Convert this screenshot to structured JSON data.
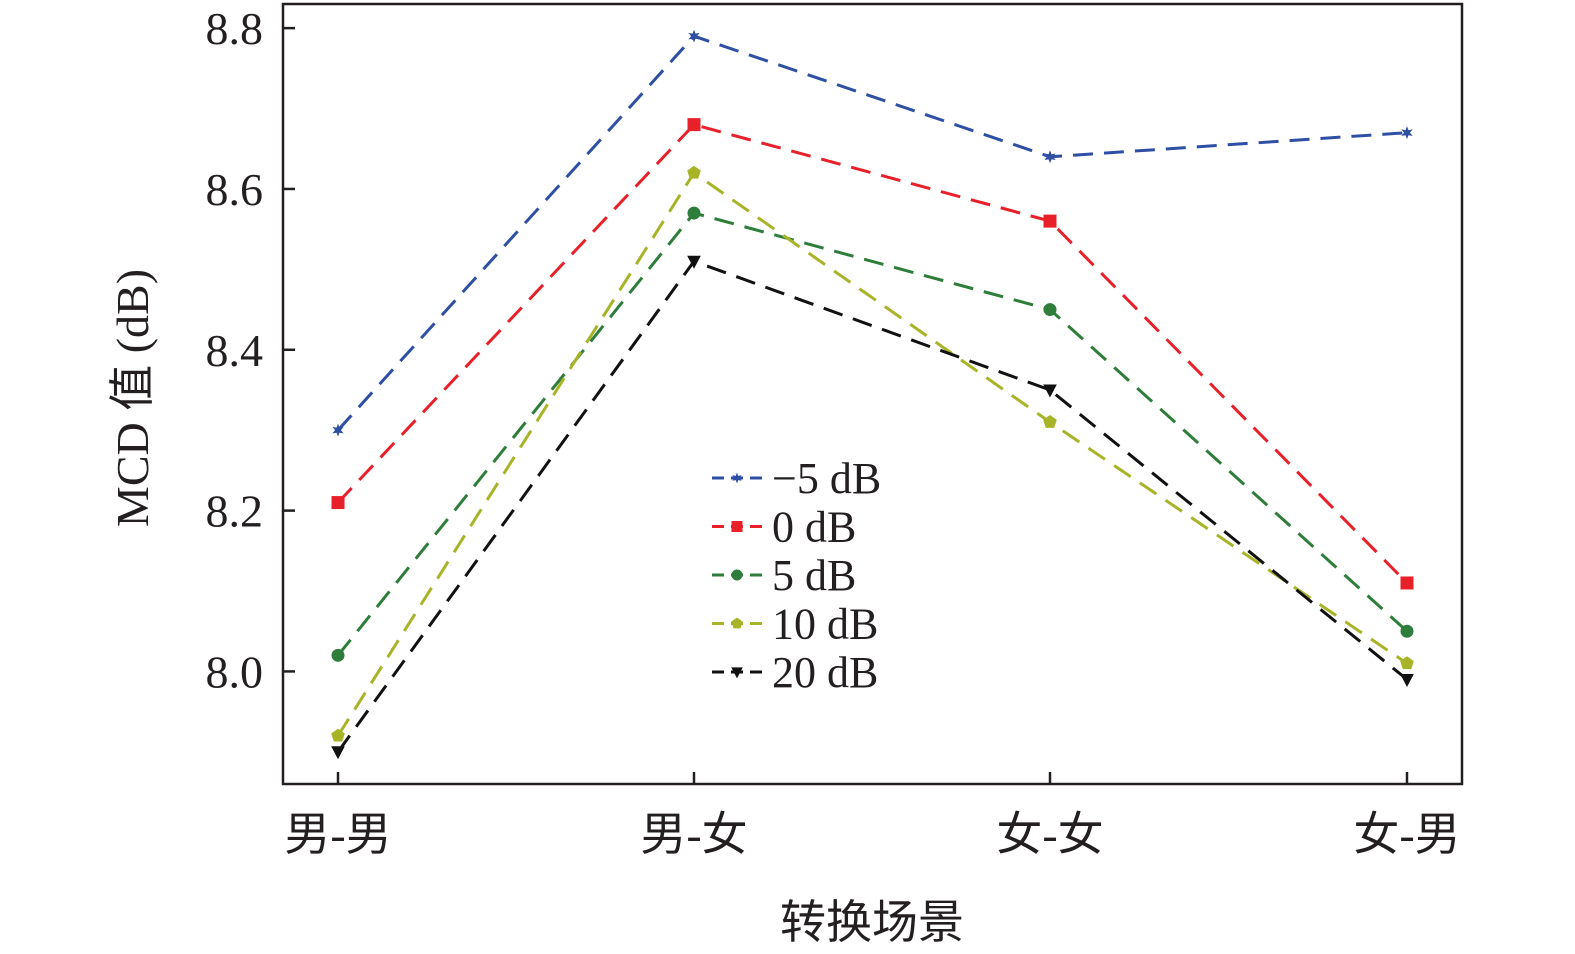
{
  "chart_data": {
    "type": "line",
    "title": "",
    "xlabel": "转换场景",
    "ylabel": "MCD 值 (dB)",
    "categories": [
      "男-男",
      "男-女",
      "女-女",
      "女-男"
    ],
    "ylim": [
      7.86,
      8.83
    ],
    "yticks": [
      8.0,
      8.2,
      8.4,
      8.6,
      8.8
    ],
    "ytick_labels": [
      "8.0",
      "8.2",
      "8.4",
      "8.6",
      "8.8"
    ],
    "grid": false,
    "legend_position": "center",
    "line_style": "dashed",
    "series": [
      {
        "name": "−5 dB",
        "marker": "star",
        "color": "#2e4fa3",
        "values": [
          8.3,
          8.79,
          8.64,
          8.67
        ]
      },
      {
        "name": "0 dB",
        "marker": "square",
        "color": "#e8202a",
        "values": [
          8.21,
          8.68,
          8.56,
          8.11
        ]
      },
      {
        "name": "5 dB",
        "marker": "circle",
        "color": "#2e7d3a",
        "values": [
          8.02,
          8.57,
          8.45,
          8.05
        ]
      },
      {
        "name": "10 dB",
        "marker": "pentagon",
        "color": "#a8b428",
        "values": [
          7.92,
          8.62,
          8.31,
          8.01
        ]
      },
      {
        "name": "20 dB",
        "marker": "triangle-down",
        "color": "#111111",
        "values": [
          7.9,
          8.51,
          8.35,
          7.99
        ]
      }
    ]
  }
}
